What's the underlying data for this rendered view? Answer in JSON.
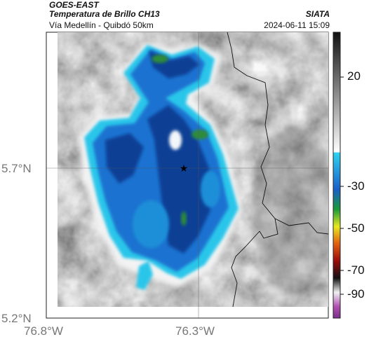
{
  "header": {
    "satellite": "GOES-EAST",
    "product": "Temperatura de Brillo CH13",
    "region": "Vía Medellín - Quibdó 50km",
    "institution": "SIATA",
    "datetime": "2024-06-11 15:09"
  },
  "map": {
    "lat_ticks": [
      "5.7°N",
      "5.2°N"
    ],
    "lon_ticks": [
      "76.8°W",
      "76.3°W"
    ],
    "marker": "star-icon"
  },
  "colorbar": {
    "tick_labels": [
      "20",
      "-30",
      "-50",
      "-70",
      "-90"
    ]
  },
  "colors": {
    "cloud_deep": "#0a3d91",
    "cloud_blue": "#1f6fd1",
    "cloud_cyan": "#2fd0ee",
    "cloud_green": "#2e8b3a"
  }
}
